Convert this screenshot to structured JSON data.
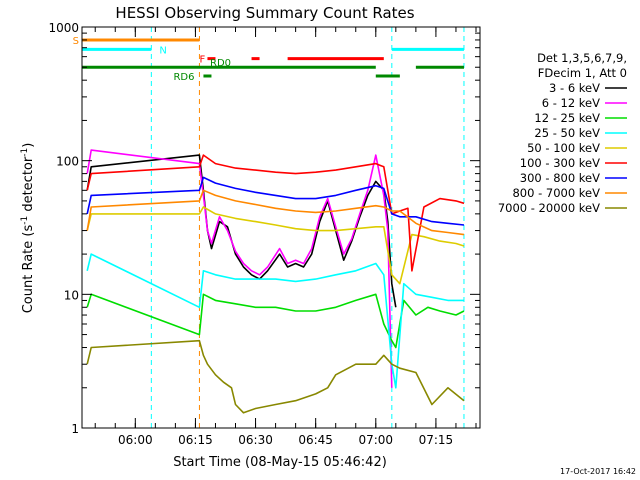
{
  "chart_data": {
    "type": "line",
    "title": "HESSI Observing Summary Count Rates",
    "xlabel": "Start Time (08-May-15 05:46:42)",
    "ylabel": "Count Rate (s⁻¹ detector⁻¹)",
    "ylabel_parts": {
      "main": "Count Rate (s",
      "sup1": "-1",
      "mid": " detector",
      "sup2": "-1",
      "end": ")"
    },
    "yscale": "log",
    "xlim": [
      "05:46:42",
      "07:26:00"
    ],
    "ylim": [
      1,
      1000
    ],
    "x_ticks": [
      "06:00",
      "06:15",
      "06:30",
      "06:45",
      "07:00",
      "07:15"
    ],
    "y_ticks": [
      {
        "value": 1,
        "label": "1"
      },
      {
        "value": 10,
        "label": "10"
      },
      {
        "value": 100,
        "label": "100"
      },
      {
        "value": 1000,
        "label": "1000"
      }
    ],
    "legend": {
      "position": "right",
      "header": [
        "Det 1,3,5,6,7,9,",
        "FDecim 1, Att 0"
      ]
    },
    "series": [
      {
        "name": "3 - 6 keV",
        "color": "#000000",
        "x": [
          "05:48",
          "05:49",
          "06:16",
          "06:17",
          "06:18",
          "06:19",
          "06:21",
          "06:23",
          "06:25",
          "06:27",
          "06:29",
          "06:31",
          "06:33",
          "06:36",
          "06:38",
          "06:40",
          "06:42",
          "06:44",
          "06:46",
          "06:48",
          "06:50",
          "06:52",
          "06:54",
          "06:56",
          "06:58",
          "07:00",
          "07:02",
          "07:03",
          "07:04",
          "07:05"
        ],
        "values": [
          60,
          90,
          110,
          60,
          30,
          22,
          35,
          32,
          20,
          16,
          14,
          13,
          15,
          20,
          16,
          17,
          16,
          20,
          35,
          50,
          30,
          18,
          25,
          38,
          55,
          70,
          60,
          35,
          12,
          8
        ]
      },
      {
        "name": "6 - 12 keV",
        "color": "#ff00ff",
        "x": [
          "05:48",
          "05:49",
          "06:16",
          "06:17",
          "06:18",
          "06:19",
          "06:21",
          "06:23",
          "06:25",
          "06:27",
          "06:29",
          "06:31",
          "06:33",
          "06:36",
          "06:38",
          "06:40",
          "06:42",
          "06:44",
          "06:46",
          "06:48",
          "06:50",
          "06:52",
          "06:54",
          "06:56",
          "06:58",
          "07:00",
          "07:02",
          "07:03",
          "07:04"
        ],
        "values": [
          80,
          120,
          95,
          55,
          30,
          24,
          38,
          30,
          21,
          17,
          15,
          14,
          16,
          22,
          17,
          18,
          17,
          22,
          38,
          52,
          32,
          20,
          26,
          40,
          60,
          110,
          55,
          30,
          2
        ]
      },
      {
        "name": "12 - 25 keV",
        "color": "#00dd00",
        "x": [
          "05:48",
          "05:49",
          "06:16",
          "06:17",
          "06:20",
          "06:25",
          "06:30",
          "06:35",
          "06:40",
          "06:45",
          "06:50",
          "06:55",
          "07:00",
          "07:02",
          "07:04",
          "07:05",
          "07:07",
          "07:10",
          "07:13",
          "07:16",
          "07:20",
          "07:22"
        ],
        "values": [
          8,
          10,
          5,
          10,
          9,
          8.5,
          8,
          8,
          7.5,
          7.5,
          8,
          9,
          10,
          6,
          4.5,
          4,
          9,
          7,
          8,
          7.5,
          7,
          7.5
        ]
      },
      {
        "name": "25 - 50 keV",
        "color": "#00ffff",
        "x": [
          "05:48",
          "05:49",
          "06:16",
          "06:17",
          "06:20",
          "06:25",
          "06:30",
          "06:35",
          "06:40",
          "06:45",
          "06:50",
          "06:55",
          "07:00",
          "07:02",
          "07:04",
          "07:05",
          "07:07",
          "07:10",
          "07:14",
          "07:18",
          "07:22"
        ],
        "values": [
          15,
          20,
          8,
          15,
          14,
          13,
          13,
          13,
          12.5,
          13,
          14,
          15,
          17,
          14,
          3,
          2,
          12,
          10,
          9.5,
          9,
          9
        ]
      },
      {
        "name": "50 - 100 keV",
        "color": "#ddcc00",
        "x": [
          "05:48",
          "05:49",
          "06:16",
          "06:17",
          "06:20",
          "06:25",
          "06:30",
          "06:35",
          "06:40",
          "06:45",
          "06:50",
          "06:55",
          "07:00",
          "07:02",
          "07:04",
          "07:06",
          "07:09",
          "07:12",
          "07:16",
          "07:20",
          "07:22"
        ],
        "values": [
          30,
          40,
          40,
          45,
          40,
          37,
          35,
          33,
          31,
          30,
          30,
          31,
          32,
          32,
          14,
          12,
          28,
          27,
          25,
          24,
          23
        ]
      },
      {
        "name": "100 - 300 keV",
        "color": "#ff0000",
        "x": [
          "05:48",
          "05:49",
          "06:16",
          "06:17",
          "06:20",
          "06:25",
          "06:30",
          "06:35",
          "06:40",
          "06:45",
          "06:50",
          "06:55",
          "07:00",
          "07:02",
          "07:04",
          "07:06",
          "07:08",
          "07:09",
          "07:12",
          "07:16",
          "07:20",
          "07:22"
        ],
        "values": [
          60,
          80,
          90,
          110,
          95,
          88,
          85,
          82,
          80,
          82,
          85,
          90,
          95,
          90,
          40,
          42,
          44,
          15,
          45,
          52,
          50,
          48
        ]
      },
      {
        "name": "300 - 800 keV",
        "color": "#0000ff",
        "x": [
          "05:48",
          "05:49",
          "06:16",
          "06:17",
          "06:20",
          "06:25",
          "06:30",
          "06:35",
          "06:40",
          "06:45",
          "06:50",
          "06:55",
          "07:00",
          "07:02",
          "07:04",
          "07:06",
          "07:10",
          "07:14",
          "07:18",
          "07:22"
        ],
        "values": [
          40,
          55,
          60,
          75,
          68,
          62,
          58,
          55,
          52,
          52,
          55,
          60,
          65,
          62,
          40,
          38,
          38,
          35,
          34,
          33
        ]
      },
      {
        "name": "800 - 7000 keV",
        "color": "#ff8800",
        "x": [
          "05:48",
          "05:49",
          "06:16",
          "06:17",
          "06:20",
          "06:25",
          "06:30",
          "06:35",
          "06:40",
          "06:45",
          "06:50",
          "06:55",
          "07:00",
          "07:02",
          "07:04",
          "07:06",
          "07:10",
          "07:14",
          "07:18",
          "07:22"
        ],
        "values": [
          30,
          45,
          50,
          60,
          55,
          50,
          47,
          44,
          42,
          41,
          42,
          44,
          46,
          45,
          42,
          42,
          34,
          30,
          29,
          28
        ]
      },
      {
        "name": "7000 - 20000 keV",
        "color": "#888800",
        "x": [
          "05:48",
          "05:49",
          "06:16",
          "06:17",
          "06:18",
          "06:20",
          "06:22",
          "06:24",
          "06:25",
          "06:27",
          "06:30",
          "06:35",
          "06:40",
          "06:45",
          "06:48",
          "06:50",
          "06:55",
          "07:00",
          "07:02",
          "07:04",
          "07:06",
          "07:10",
          "07:14",
          "07:18",
          "07:22"
        ],
        "values": [
          3,
          4,
          4.5,
          3.5,
          3,
          2.5,
          2.2,
          2,
          1.5,
          1.3,
          1.4,
          1.5,
          1.6,
          1.8,
          2,
          2.5,
          3,
          3,
          3.5,
          3,
          2.8,
          2.6,
          1.5,
          2,
          1.6
        ]
      }
    ],
    "state_bars": [
      {
        "label": "S",
        "color": "#ff8800",
        "level": 800,
        "segments": [
          [
            "05:46:42",
            "06:16"
          ]
        ]
      },
      {
        "label": "N",
        "color": "#00ffff",
        "level": 680,
        "segments": [
          [
            "05:46:42",
            "06:04"
          ],
          [
            "07:04",
            "07:22"
          ]
        ]
      },
      {
        "label": "F",
        "color": "#ff0000",
        "level": 580,
        "segments": [
          [
            "06:18",
            "06:20"
          ],
          [
            "06:29",
            "06:31"
          ],
          [
            "06:38",
            "07:02"
          ]
        ]
      },
      {
        "label": "RD0",
        "color": "#008800",
        "level": 500,
        "segments": [
          [
            "05:46:42",
            "07:00"
          ],
          [
            "07:10",
            "07:22"
          ]
        ]
      },
      {
        "label": "RD6",
        "color": "#008800",
        "level": 430,
        "segments": [
          [
            "06:17",
            "06:19"
          ],
          [
            "07:00",
            "07:06"
          ]
        ]
      }
    ],
    "vlines": [
      {
        "x": "06:04",
        "color": "#00ffff"
      },
      {
        "x": "06:16",
        "color": "#ff8800"
      },
      {
        "x": "07:04",
        "color": "#00ffff"
      },
      {
        "x": "07:22",
        "color": "#00ffff"
      }
    ]
  },
  "footer": {
    "timestamp": "17-Oct-2017 16:42"
  }
}
